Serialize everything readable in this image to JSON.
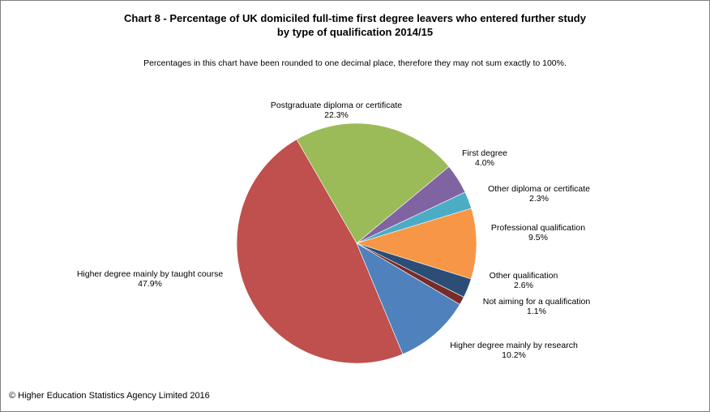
{
  "chart_data": {
    "type": "pie",
    "title": "Chart 8 - Percentage of UK domiciled full-time first degree leavers who entered further study",
    "title_line2": "by type of qualification 2014/15",
    "subtitle": "Percentages in this chart have been rounded to one decimal place, therefore they may not sum exactly to 100%.",
    "start_angle_deg": -30,
    "direction": "clockwise",
    "slices": [
      {
        "label": "Postgraduate diploma  or certificate",
        "value": 22.3,
        "value_label": "22.3%",
        "color": "#9BBB59"
      },
      {
        "label": "First degree",
        "value": 4.0,
        "value_label": "4.0%",
        "color": "#8064A2"
      },
      {
        "label": "Other diploma  or certificate",
        "value": 2.3,
        "value_label": "2.3%",
        "color": "#4BACC6"
      },
      {
        "label": "Professional qualification",
        "value": 9.5,
        "value_label": "9.5%",
        "color": "#F79646"
      },
      {
        "label": "Other qualification",
        "value": 2.6,
        "value_label": "2.6%",
        "color": "#2C4D75"
      },
      {
        "label": "Not aiming  for a qualification",
        "value": 1.1,
        "value_label": "1.1%",
        "color": "#772C2A"
      },
      {
        "label": "Higher degree mainly by research",
        "value": 10.2,
        "value_label": "10.2%",
        "color": "#4F81BD"
      },
      {
        "label": "Higher degree mainly by taught course",
        "value": 47.9,
        "value_label": "47.9%",
        "color": "#C0504D"
      }
    ]
  },
  "footer": "© Higher Education Statistics Agency Limited 2016"
}
